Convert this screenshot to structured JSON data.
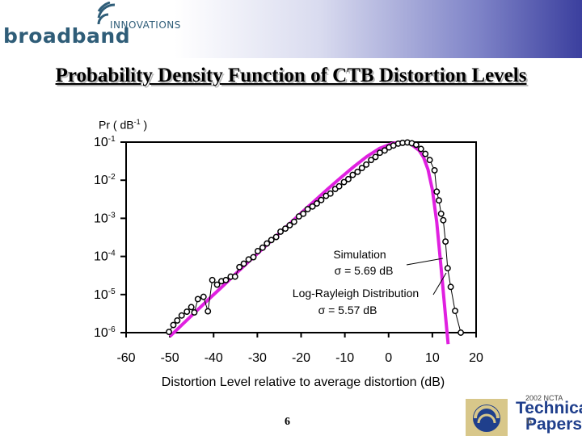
{
  "header": {
    "logo_word": "broadband",
    "logo_sub": "INNOVATIONS",
    "title": "Probability Density Function of CTB Distortion Levels"
  },
  "colors": {
    "banner_right": "#3b3f9e",
    "curve": "#e020e0",
    "markers": "#000000",
    "logo": "#2f5d78"
  },
  "chart_data": {
    "type": "line",
    "title": "Probability Density Function of CTB Distortion Levels",
    "xlabel": "Distortion Level relative to average distortion (dB)",
    "ylabel_prefix": "Pr  ( dB",
    "ylabel_sup": "-1",
    "ylabel_suffix": " )",
    "xlim": [
      -60,
      20
    ],
    "ylim_log10": [
      -6,
      -1
    ],
    "x_ticks": [
      "-60",
      "-50",
      "-40",
      "-30",
      "-20",
      "-10",
      "0",
      "10",
      "20"
    ],
    "y_ticks": [
      {
        "base": "10",
        "exp": "-1"
      },
      {
        "base": "10",
        "exp": "-2"
      },
      {
        "base": "10",
        "exp": "-3"
      },
      {
        "base": "10",
        "exp": "-4"
      },
      {
        "base": "10",
        "exp": "-5"
      },
      {
        "base": "10",
        "exp": "-6"
      }
    ],
    "series": [
      {
        "name": "Simulation",
        "annotation": "Simulation",
        "sigma": "σ =  5.69 dB",
        "style": "markers",
        "points": [
          [
            -50.2,
            -5.98
          ],
          [
            -49.2,
            -5.8
          ],
          [
            -48.3,
            -5.68
          ],
          [
            -47.3,
            -5.55
          ],
          [
            -46.1,
            -5.45
          ],
          [
            -45.1,
            -5.33
          ],
          [
            -44.4,
            -5.47
          ],
          [
            -43.6,
            -5.12
          ],
          [
            -42.3,
            -5.06
          ],
          [
            -41.3,
            -5.44
          ],
          [
            -40.3,
            -4.62
          ],
          [
            -39.2,
            -4.74
          ],
          [
            -38.2,
            -4.65
          ],
          [
            -37.2,
            -4.62
          ],
          [
            -36.1,
            -4.53
          ],
          [
            -35.1,
            -4.53
          ],
          [
            -34.1,
            -4.28
          ],
          [
            -33.1,
            -4.19
          ],
          [
            -32.0,
            -4.08
          ],
          [
            -30.9,
            -4.02
          ],
          [
            -29.9,
            -3.86
          ],
          [
            -28.8,
            -3.77
          ],
          [
            -27.8,
            -3.66
          ],
          [
            -26.8,
            -3.57
          ],
          [
            -25.7,
            -3.49
          ],
          [
            -24.7,
            -3.35
          ],
          [
            -23.6,
            -3.27
          ],
          [
            -22.6,
            -3.18
          ],
          [
            -21.6,
            -3.09
          ],
          [
            -20.5,
            -2.95
          ],
          [
            -19.5,
            -2.88
          ],
          [
            -18.5,
            -2.76
          ],
          [
            -17.4,
            -2.69
          ],
          [
            -16.4,
            -2.61
          ],
          [
            -15.4,
            -2.52
          ],
          [
            -14.3,
            -2.41
          ],
          [
            -13.3,
            -2.35
          ],
          [
            -12.2,
            -2.23
          ],
          [
            -11.3,
            -2.16
          ],
          [
            -10.2,
            -2.05
          ],
          [
            -9.2,
            -1.97
          ],
          [
            -8.2,
            -1.86
          ],
          [
            -7.1,
            -1.78
          ],
          [
            -6.1,
            -1.68
          ],
          [
            -5.1,
            -1.59
          ],
          [
            -4.0,
            -1.47
          ],
          [
            -3.0,
            -1.39
          ],
          [
            -2.0,
            -1.28
          ],
          [
            -0.9,
            -1.22
          ],
          [
            0.1,
            -1.14
          ],
          [
            1.1,
            -1.09
          ],
          [
            2.2,
            -1.04
          ],
          [
            3.2,
            -1.02
          ],
          [
            4.3,
            -1.01
          ],
          [
            5.3,
            -1.03
          ],
          [
            6.3,
            -1.07
          ],
          [
            7.4,
            -1.18
          ],
          [
            8.4,
            -1.31
          ],
          [
            9.4,
            -1.47
          ],
          [
            10.5,
            -1.74
          ],
          [
            11.0,
            -2.3
          ],
          [
            11.5,
            -2.53
          ],
          [
            12.0,
            -2.88
          ],
          [
            12.5,
            -3.05
          ],
          [
            13.0,
            -3.61
          ],
          [
            13.5,
            -4.31
          ],
          [
            14.2,
            -4.8
          ],
          [
            15.2,
            -5.43
          ],
          [
            16.5,
            -6.0
          ]
        ]
      },
      {
        "name": "Log-Rayleigh Distribution",
        "annotation": "Log-Rayleigh Distribution",
        "sigma": "σ =  5.57 dB",
        "style": "line",
        "points": [
          [
            -50.0,
            -6.1
          ],
          [
            -47.0,
            -5.77
          ],
          [
            -44.0,
            -5.44
          ],
          [
            -41.0,
            -5.11
          ],
          [
            -38.0,
            -4.79
          ],
          [
            -35.0,
            -4.46
          ],
          [
            -32.0,
            -4.14
          ],
          [
            -29.0,
            -3.82
          ],
          [
            -26.0,
            -3.5
          ],
          [
            -23.0,
            -3.18
          ],
          [
            -20.0,
            -2.86
          ],
          [
            -17.0,
            -2.55
          ],
          [
            -14.0,
            -2.24
          ],
          [
            -11.0,
            -1.94
          ],
          [
            -8.0,
            -1.65
          ],
          [
            -5.0,
            -1.38
          ],
          [
            -2.0,
            -1.16
          ],
          [
            1.0,
            -1.03
          ],
          [
            3.0,
            -1.0
          ],
          [
            5.0,
            -1.04
          ],
          [
            7.0,
            -1.22
          ],
          [
            8.0,
            -1.4
          ],
          [
            9.0,
            -1.72
          ],
          [
            10.0,
            -2.25
          ],
          [
            11.0,
            -3.1
          ],
          [
            12.0,
            -4.3
          ],
          [
            13.0,
            -5.55
          ],
          [
            13.6,
            -6.3
          ]
        ]
      }
    ]
  },
  "footer": {
    "slide_number": "6",
    "slide_number_2": "6",
    "tech_top": "2002 NCTA",
    "tech_line1": "Technical",
    "tech_line2": "Papers"
  }
}
